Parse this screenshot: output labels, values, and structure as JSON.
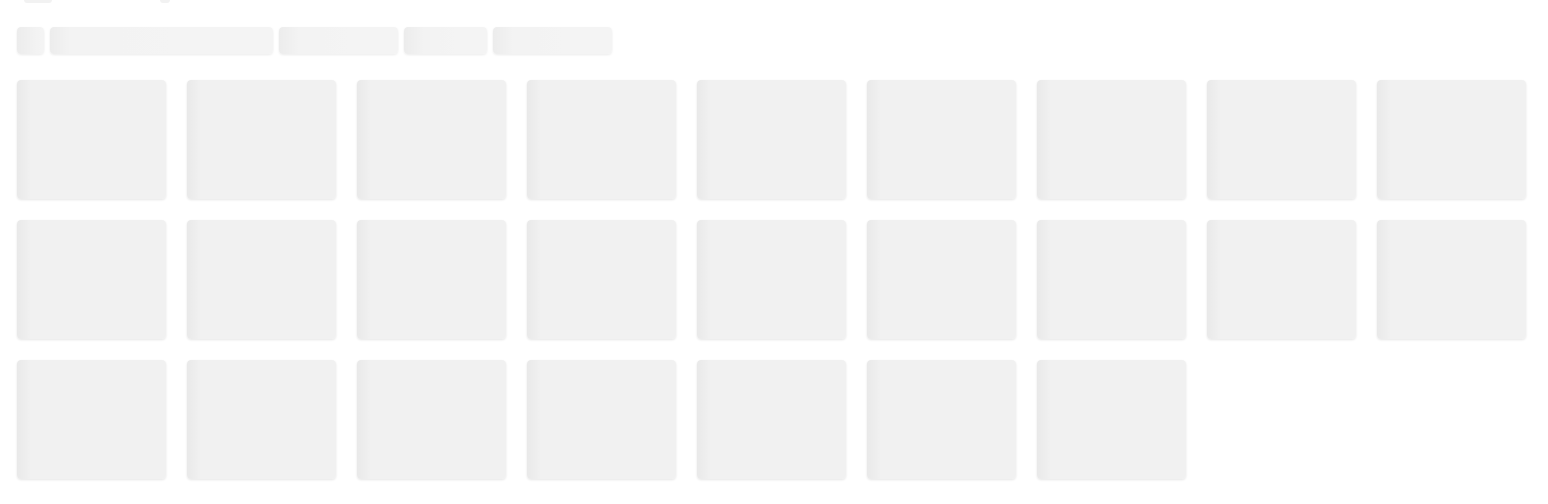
{
  "page": {
    "state": "loading",
    "status_text": ""
  },
  "colors": {
    "background": "#ffffff",
    "skeleton": "#f1f1f1",
    "skeleton_shimmer": "#e9e9e9"
  },
  "tabs": [
    {
      "label": ""
    },
    {
      "label": ""
    },
    {
      "label": ""
    },
    {
      "label": ""
    },
    {
      "label": ""
    }
  ],
  "grid": {
    "rows": [
      {
        "tiles": [
          "",
          "",
          "",
          "",
          "",
          "",
          "",
          "",
          ""
        ]
      },
      {
        "tiles": [
          "",
          "",
          "",
          "",
          "",
          "",
          "",
          "",
          ""
        ]
      },
      {
        "tiles": [
          "",
          "",
          "",
          "",
          "",
          "",
          ""
        ]
      }
    ]
  }
}
